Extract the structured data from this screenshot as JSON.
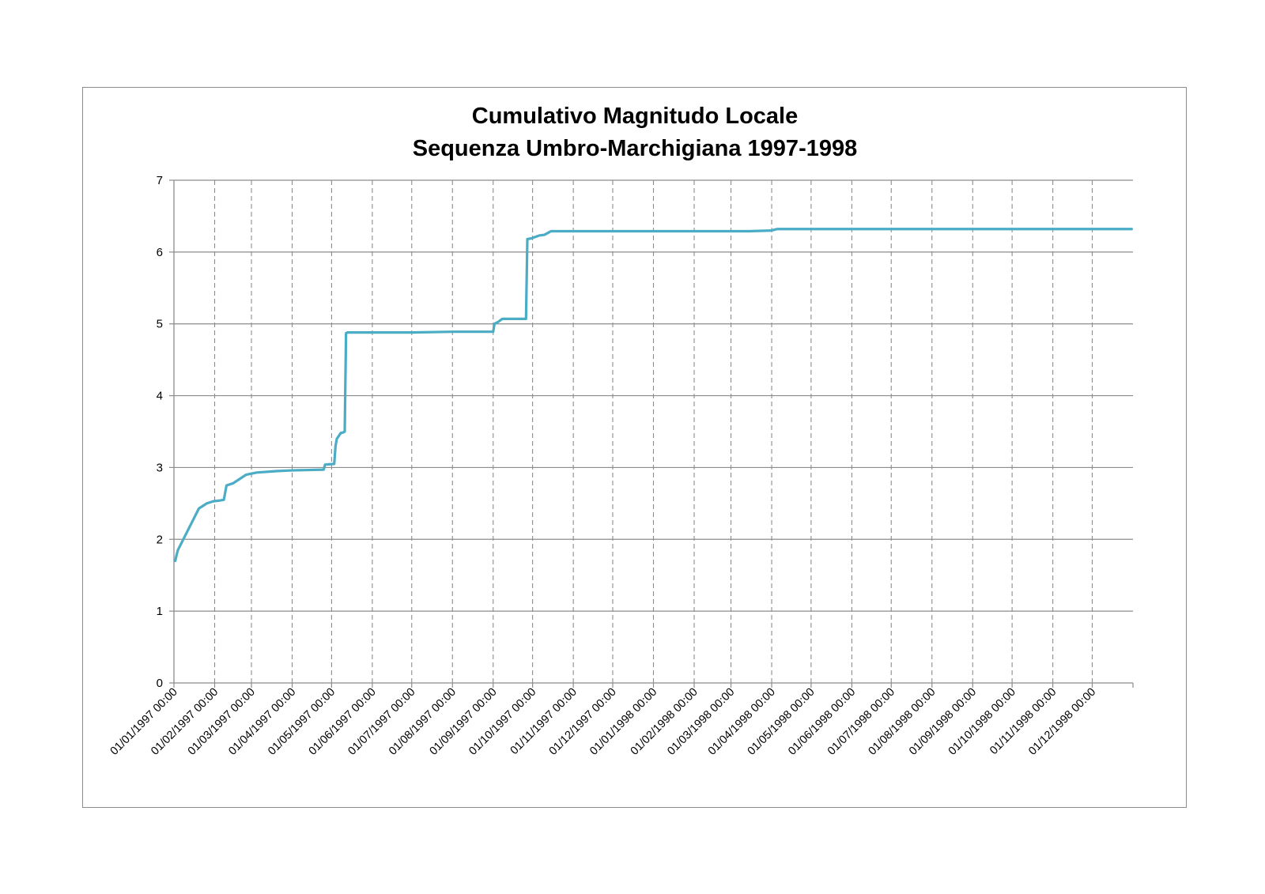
{
  "chart_data": {
    "type": "line",
    "title": [
      "Cumulativo Magnitudo Locale",
      "Sequenza Umbro-Marchigiana 1997-1998"
    ],
    "xlabel": "",
    "ylabel": "",
    "ylim": [
      0,
      7
    ],
    "yticks": [
      0,
      1,
      2,
      3,
      4,
      5,
      6,
      7
    ],
    "xlim": [
      "1997-01-01",
      "1999-01-01"
    ],
    "x_tick_labels": [
      "01/01/1997 00:00",
      "01/02/1997 00:00",
      "01/03/1997 00:00",
      "01/04/1997 00:00",
      "01/05/1997 00:00",
      "01/06/1997 00:00",
      "01/07/1997 00:00",
      "01/08/1997 00:00",
      "01/09/1997 00:00",
      "01/10/1997 00:00",
      "01/11/1997 00:00",
      "01/12/1997 00:00",
      "01/01/1998 00:00",
      "01/02/1998 00:00",
      "01/03/1998 00:00",
      "01/04/1998 00:00",
      "01/05/1998 00:00",
      "01/06/1998 00:00",
      "01/07/1998 00:00",
      "01/08/1998 00:00",
      "01/09/1998 00:00",
      "01/10/1998 00:00",
      "01/11/1998 00:00",
      "01/12/1998 00:00"
    ],
    "grid": {
      "horizontal": "solid",
      "vertical": "dashed"
    },
    "legend": "none",
    "colors": {
      "line": "#4BACC6",
      "grid": "#8c8c8c",
      "frame": "#8c8c8c"
    },
    "series": [
      {
        "x": [
          "1997-01-02",
          "1997-01-03",
          "1997-01-04",
          "1997-01-20",
          "1997-01-26",
          "1997-01-31",
          "1997-02-05",
          "1997-02-08",
          "1997-02-09",
          "1997-02-10",
          "1997-02-15",
          "1997-02-25",
          "1997-03-05",
          "1997-03-20",
          "1997-04-01",
          "1997-04-25",
          "1997-04-26",
          "1997-05-03",
          "1997-05-04",
          "1997-05-05",
          "1997-05-08",
          "1997-05-10",
          "1997-05-11",
          "1997-05-12",
          "1997-05-13",
          "1997-05-14",
          "1997-06-01",
          "1997-07-01",
          "1997-08-01",
          "1997-09-01",
          "1997-09-02",
          "1997-09-05",
          "1997-09-08",
          "1997-09-26",
          "1997-09-27",
          "1997-09-30",
          "1997-10-03",
          "1997-10-06",
          "1997-10-10",
          "1997-10-14",
          "1997-10-15",
          "1997-10-20",
          "1997-11-01",
          "1998-01-01",
          "1998-03-15",
          "1998-04-01",
          "1998-04-05",
          "1998-05-01",
          "1998-12-31"
        ],
        "y": [
          1.7,
          1.78,
          1.85,
          2.43,
          2.5,
          2.53,
          2.54,
          2.55,
          2.65,
          2.75,
          2.78,
          2.9,
          2.93,
          2.95,
          2.96,
          2.97,
          3.04,
          3.05,
          3.3,
          3.4,
          3.48,
          3.49,
          3.5,
          4.87,
          4.88,
          4.88,
          4.88,
          4.88,
          4.89,
          4.89,
          5.0,
          5.03,
          5.07,
          5.07,
          6.18,
          6.19,
          6.21,
          6.23,
          6.24,
          6.28,
          6.29,
          6.29,
          6.29,
          6.29,
          6.29,
          6.3,
          6.32,
          6.32,
          6.32
        ]
      }
    ]
  }
}
